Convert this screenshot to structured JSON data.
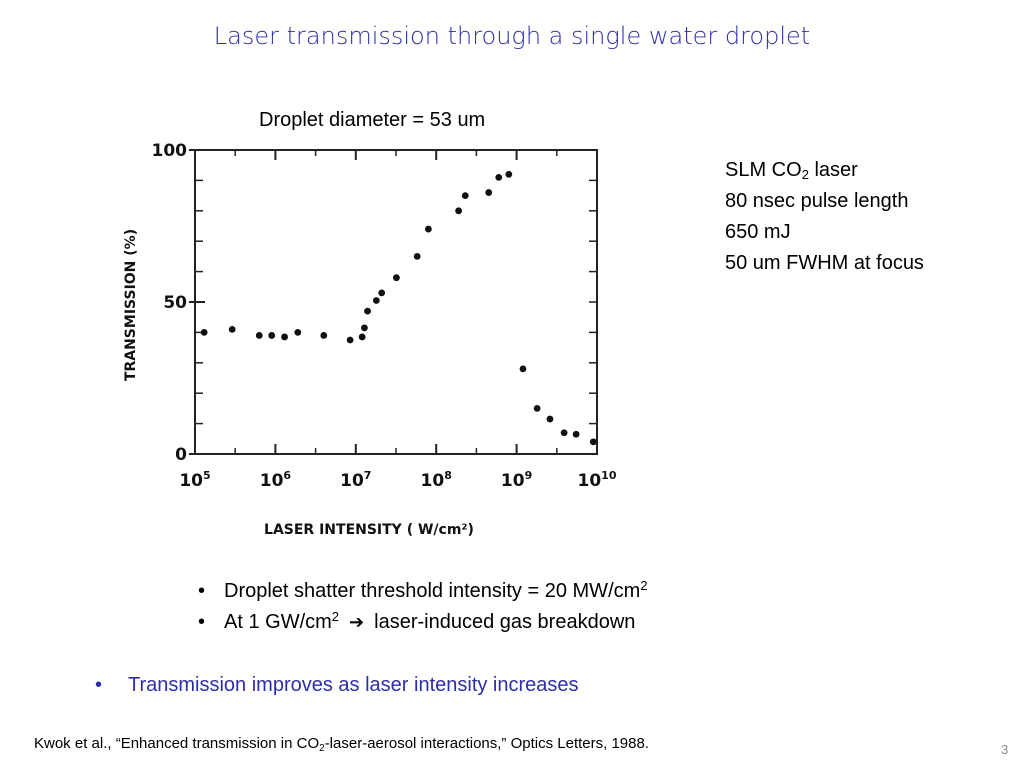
{
  "slide": {
    "title": "Laser transmission through a single water droplet",
    "subtitle": "Droplet diameter = 53 um",
    "laser": {
      "line1_pre": "SLM CO",
      "line1_sub": "2",
      "line1_post": " laser",
      "line2": "80 nsec pulse length",
      "line3": "650 mJ",
      "line4": "50 um FWHM at focus"
    },
    "bullets": [
      {
        "bullet": "•",
        "text": "Droplet shatter threshold intensity = 20 MW/cm",
        "sup": "2"
      },
      {
        "bullet": "•",
        "pre": "At 1 GW/cm",
        "sup": "2",
        "arrow": "➔",
        "post": "laser-induced gas breakdown"
      }
    ],
    "main_point": {
      "bullet": "•",
      "text": "Transmission improves as laser intensity increases"
    },
    "reference": {
      "pre": "Kwok et al., “Enhanced transmission in CO",
      "sub": "2",
      "post": "-laser-aerosol interactions,” Optics Letters, 1988."
    },
    "page_number": "3"
  },
  "chart_data": {
    "type": "scatter",
    "xscale": "log",
    "xlim": [
      100000,
      10000000000
    ],
    "ylim": [
      0,
      100
    ],
    "xlabel": "LASER INTENSITY ( W/cm²)",
    "ylabel": "TRANSMISSION (%)",
    "x_ticks": [
      {
        "value": 100000,
        "base": "10",
        "exp": "5"
      },
      {
        "value": 1000000,
        "base": "10",
        "exp": "6"
      },
      {
        "value": 10000000,
        "base": "10",
        "exp": "7"
      },
      {
        "value": 100000000,
        "base": "10",
        "exp": "8"
      },
      {
        "value": 1000000000,
        "base": "10",
        "exp": "9"
      },
      {
        "value": 10000000000,
        "base": "10",
        "exp": "10"
      }
    ],
    "y_ticks": [
      {
        "value": 0,
        "label": "0"
      },
      {
        "value": 50,
        "label": "50"
      },
      {
        "value": 100,
        "label": "100"
      }
    ],
    "points": [
      {
        "x": 130000,
        "y": 40
      },
      {
        "x": 290000,
        "y": 41
      },
      {
        "x": 630000,
        "y": 39
      },
      {
        "x": 900000,
        "y": 39
      },
      {
        "x": 1300000,
        "y": 38.5
      },
      {
        "x": 1900000,
        "y": 40
      },
      {
        "x": 4000000,
        "y": 39
      },
      {
        "x": 8500000,
        "y": 37.5
      },
      {
        "x": 12000000,
        "y": 38.5
      },
      {
        "x": 12800000,
        "y": 41.5
      },
      {
        "x": 14000000,
        "y": 47
      },
      {
        "x": 18000000,
        "y": 50.5
      },
      {
        "x": 21000000,
        "y": 53
      },
      {
        "x": 32000000,
        "y": 58
      },
      {
        "x": 58000000,
        "y": 65
      },
      {
        "x": 80000000,
        "y": 74
      },
      {
        "x": 190000000,
        "y": 80
      },
      {
        "x": 230000000,
        "y": 85
      },
      {
        "x": 450000000,
        "y": 86
      },
      {
        "x": 600000000,
        "y": 91
      },
      {
        "x": 800000000,
        "y": 92
      },
      {
        "x": 1200000000,
        "y": 28
      },
      {
        "x": 1800000000,
        "y": 15
      },
      {
        "x": 2600000000,
        "y": 11.5
      },
      {
        "x": 3900000000,
        "y": 7
      },
      {
        "x": 5500000000,
        "y": 6.5
      },
      {
        "x": 9000000000,
        "y": 4
      }
    ]
  }
}
